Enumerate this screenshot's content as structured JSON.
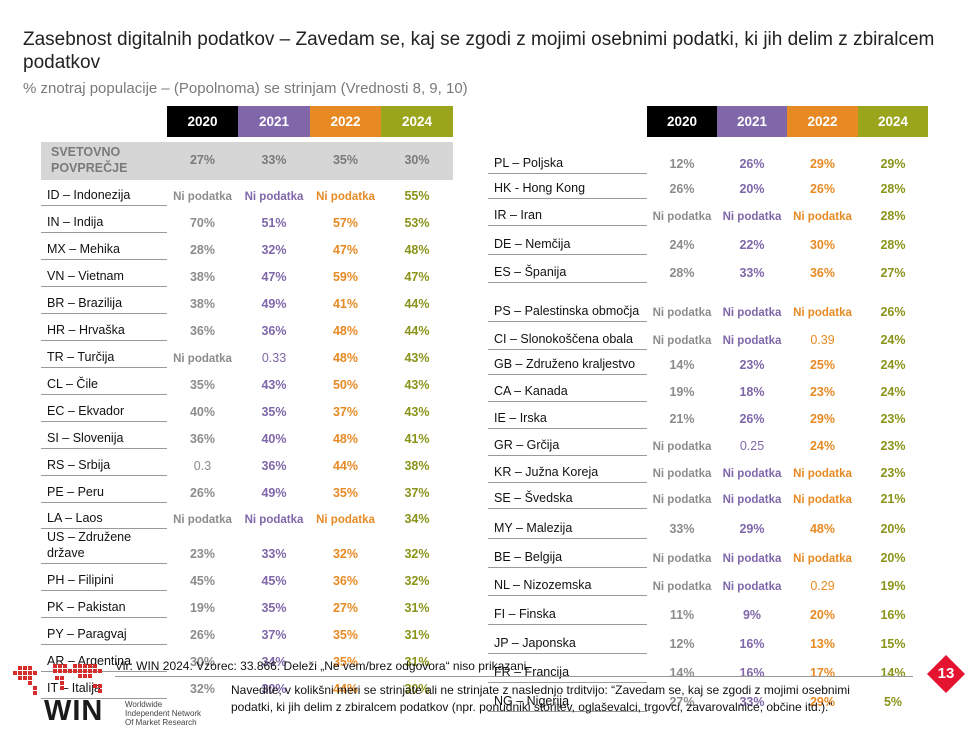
{
  "title": "Zasebnost digitalnih podatkov – Zavedam se, kaj se zgodi z mojimi osebnimi podatki, ki jih delim z zbiralcem podatkov",
  "subtitle": "% znotraj populacije – (Popolnoma) se strinjam (Vrednosti 8, 9, 10)",
  "years": [
    "2020",
    "2021",
    "2022",
    "2024"
  ],
  "colors": {
    "y2020": "#000000",
    "y2021": "#7f67a9",
    "y2022": "#e78a24",
    "y2024": "#9aa51c",
    "badge": "#e4132f"
  },
  "left_table": {
    "global": {
      "label": "SVETOVNO POVPREČJE",
      "values": [
        "27%",
        "33%",
        "35%",
        "30%"
      ]
    },
    "rows": [
      {
        "country": "ID – Indonezija",
        "values": [
          "Ni podatka",
          "Ni podatka",
          "Ni podatka",
          "55%"
        ]
      },
      {
        "country": "IN – Indija",
        "values": [
          "70%",
          "51%",
          "57%",
          "53%"
        ]
      },
      {
        "country": "MX – Mehika",
        "values": [
          "28%",
          "32%",
          "47%",
          "48%"
        ]
      },
      {
        "country": "VN – Vietnam",
        "values": [
          "38%",
          "47%",
          "59%",
          "47%"
        ]
      },
      {
        "country": "BR – Brazilija",
        "values": [
          "38%",
          "49%",
          "41%",
          "44%"
        ]
      },
      {
        "country": "HR – Hrvaška",
        "values": [
          "36%",
          "36%",
          "48%",
          "44%"
        ]
      },
      {
        "country": "TR – Turčija",
        "values": [
          "Ni podatka",
          "0.33",
          "48%",
          "43%"
        ]
      },
      {
        "country": "CL – Čile",
        "values": [
          "35%",
          "43%",
          "50%",
          "43%"
        ]
      },
      {
        "country": "EC – Ekvador",
        "values": [
          "40%",
          "35%",
          "37%",
          "43%"
        ]
      },
      {
        "country": "SI – Slovenija",
        "values": [
          "36%",
          "40%",
          "48%",
          "41%"
        ]
      },
      {
        "country": "RS – Srbija",
        "values": [
          "0.3",
          "36%",
          "44%",
          "38%"
        ]
      },
      {
        "country": "PE – Peru",
        "values": [
          "26%",
          "49%",
          "35%",
          "37%"
        ]
      },
      {
        "country": "LA – Laos",
        "values": [
          "Ni podatka",
          "Ni podatka",
          "Ni podatka",
          "34%"
        ]
      },
      {
        "country": "US – Združene države",
        "values": [
          "23%",
          "33%",
          "32%",
          "32%"
        ]
      },
      {
        "country": "PH – Filipini",
        "values": [
          "45%",
          "45%",
          "36%",
          "32%"
        ]
      },
      {
        "country": "PK – Pakistan",
        "values": [
          "19%",
          "35%",
          "27%",
          "31%"
        ]
      },
      {
        "country": "PY – Paragvaj",
        "values": [
          "26%",
          "37%",
          "35%",
          "31%"
        ]
      },
      {
        "country": "AR – Argentina",
        "values": [
          "30%",
          "34%",
          "35%",
          "31%"
        ]
      },
      {
        "country": "IT – Italija",
        "values": [
          "32%",
          "30%",
          "44%",
          "30%"
        ]
      }
    ]
  },
  "right_table": {
    "rows": [
      {
        "country": "PL – Poljska",
        "values": [
          "12%",
          "26%",
          "29%",
          "29%"
        ]
      },
      {
        "country": "HK - Hong Kong",
        "values": [
          "26%",
          "20%",
          "26%",
          "28%"
        ]
      },
      {
        "country": "IR – Iran",
        "values": [
          "Ni podatka",
          "Ni podatka",
          "Ni podatka",
          "28%"
        ]
      },
      {
        "country": "DE – Nemčija",
        "values": [
          "24%",
          "22%",
          "30%",
          "28%"
        ]
      },
      {
        "country": "ES – Španija",
        "values": [
          "28%",
          "33%",
          "36%",
          "27%"
        ]
      },
      {
        "country": "PS – Palestinska območja",
        "values": [
          "Ni podatka",
          "Ni podatka",
          "Ni podatka",
          "26%"
        ]
      },
      {
        "country": "CI – Slonokoščena obala",
        "values": [
          "Ni podatka",
          "Ni podatka",
          "0.39",
          "24%"
        ]
      },
      {
        "country": "GB – Združeno kraljestvo",
        "values": [
          "14%",
          "23%",
          "25%",
          "24%"
        ]
      },
      {
        "country": "CA – Kanada",
        "values": [
          "19%",
          "18%",
          "23%",
          "24%"
        ]
      },
      {
        "country": "IE – Irska",
        "values": [
          "21%",
          "26%",
          "29%",
          "23%"
        ]
      },
      {
        "country": "GR – Grčija",
        "values": [
          "Ni podatka",
          "0.25",
          "24%",
          "23%"
        ]
      },
      {
        "country": "KR – Južna Koreja",
        "values": [
          "Ni podatka",
          "Ni podatka",
          "Ni podatka",
          "23%"
        ]
      },
      {
        "country": "SE – Švedska",
        "values": [
          "Ni podatka",
          "Ni podatka",
          "Ni podatka",
          "21%"
        ]
      },
      {
        "country": "MY – Malezija",
        "values": [
          "33%",
          "29%",
          "48%",
          "20%"
        ]
      },
      {
        "country": "BE – Belgija",
        "values": [
          "Ni podatka",
          "Ni podatka",
          "Ni podatka",
          "20%"
        ]
      },
      {
        "country": "NL – Nizozemska",
        "values": [
          "Ni podatka",
          "Ni podatka",
          "0.29",
          "19%"
        ]
      },
      {
        "country": "FI – Finska",
        "values": [
          "11%",
          "9%",
          "20%",
          "16%"
        ]
      },
      {
        "country": "JP – Japonska",
        "values": [
          "12%",
          "16%",
          "13%",
          "15%"
        ]
      },
      {
        "country": "FR – Francija",
        "values": [
          "14%",
          "16%",
          "17%",
          "14%"
        ]
      },
      {
        "country": "NG – Nigerija",
        "values": [
          "27%",
          "33%",
          "29%",
          "5%"
        ]
      }
    ]
  },
  "source": "Vir: WIN 2024. Vzorec: 33.866. Deleži „Ne vem/brez odgovora“ niso prikazani.",
  "question": "Navedite, v kolikšni meri se strinjate ali ne strinjate z naslednjo trditvijo: “Zavedam se, kaj se zgodi z mojimi osebnimi podatki, ki jih delim z zbiralcem podatkov (npr. ponudniki storitev, oglaševalci, trgovci, zavarovalnice, občine itd.).”",
  "page_number": "13",
  "logo": {
    "name": "WIN",
    "org_line1": "Worldwide",
    "org_line2": "Independent Network",
    "org_line3": "Of Market Research"
  }
}
